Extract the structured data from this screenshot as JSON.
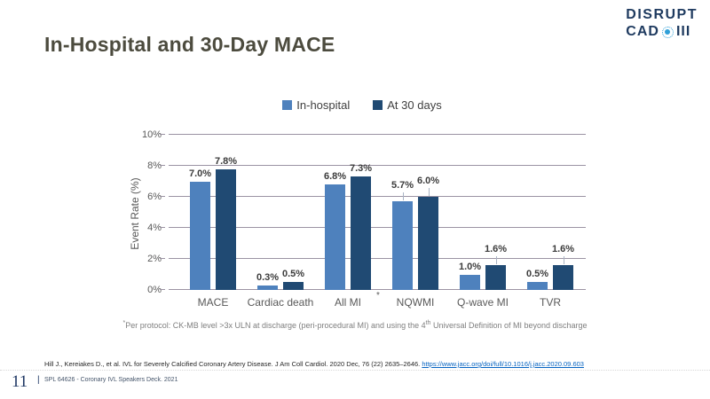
{
  "slide": {
    "title": "In-Hospital and 30-Day MACE",
    "page_number": "11",
    "footer_separator": "|",
    "footer_text": "SPL 64626 - Coronary IVL Speakers Deck. 2021",
    "footnote": {
      "marker": "*",
      "text_before_sup": "Per protocol: CK-MB level >3x ULN at discharge (peri-procedural MI) and using the 4",
      "sup": "th",
      "text_after_sup": " Universal Definition of MI beyond discharge"
    },
    "citation": {
      "text": "Hill J., Kereiakes D., et al. IVL for Severely Calcified Coronary Artery Disease. J Am Coll Cardiol. 2020 Dec, 76 (22) 2635–2646.",
      "link_text": "https://www.jacc.org/doi/full/10.1016/j.jacc.2020.09.603",
      "link_href": "https://www.jacc.org/doi/full/10.1016/j.jacc.2020.09.603"
    }
  },
  "logo": {
    "line1": "DISRUPT",
    "line2_left": "CAD",
    "line2_right": "III",
    "navy": "#1E3A5F",
    "blue": "#2E9FD8"
  },
  "chart_data": {
    "type": "bar",
    "title": "",
    "categories": [
      "MACE",
      "Cardiac death",
      "All MI",
      "NQWMI",
      "Q-wave MI",
      "TVR"
    ],
    "category_footnote_marker": "*",
    "series": [
      {
        "name": "In-hospital",
        "color": "#4E81BD",
        "values": [
          7.0,
          0.3,
          6.8,
          5.7,
          1.0,
          0.5
        ],
        "labels": [
          "7.0%",
          "0.3%",
          "6.8%",
          "5.7%",
          "1.0%",
          "0.5%"
        ]
      },
      {
        "name": "At 30 days",
        "color": "#204A73",
        "values": [
          7.8,
          0.5,
          7.3,
          6.0,
          1.6,
          1.6
        ],
        "labels": [
          "7.8%",
          "0.5%",
          "7.3%",
          "6.0%",
          "1.6%",
          "1.6%"
        ]
      }
    ],
    "xlabel": "",
    "ylabel": "Event Rate (%)",
    "ylim": [
      0,
      10
    ],
    "yticks": [
      {
        "value": 0,
        "label": "0%"
      },
      {
        "value": 2,
        "label": "2%"
      },
      {
        "value": 4,
        "label": "4%"
      },
      {
        "value": 6,
        "label": "6%"
      },
      {
        "value": 8,
        "label": "8%"
      },
      {
        "value": 10,
        "label": "10%"
      }
    ],
    "grid": "horizontal",
    "legend_position": "top",
    "leader_lines": [
      [
        0,
        3
      ],
      [
        1,
        3
      ],
      [
        1,
        4
      ],
      [
        1,
        5
      ]
    ],
    "colors": {
      "gridline": "#9B93A3",
      "axis_text": "#595959",
      "data_label": "#3B3B3B"
    }
  }
}
